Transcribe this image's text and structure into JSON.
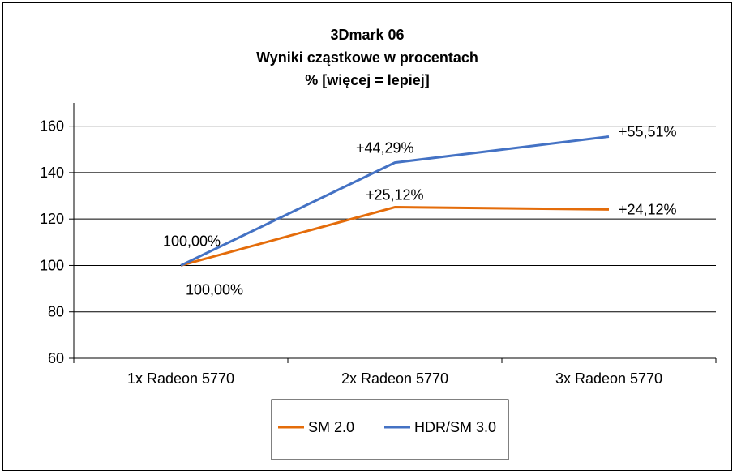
{
  "chart_data": {
    "type": "line",
    "title": [
      "3Dmark 06",
      "Wyniki cząstkowe w procentach",
      "% [więcej = lepiej]"
    ],
    "categories": [
      "1x Radeon 5770",
      "2x Radeon 5770",
      "3x Radeon 5770"
    ],
    "ylim": [
      60,
      170
    ],
    "yticks": [
      60,
      80,
      100,
      120,
      140,
      160
    ],
    "grid": true,
    "legend_position": "bottom",
    "series": [
      {
        "name": "SM 2.0",
        "color": "#E46C0A",
        "values": [
          100,
          125.12,
          124.12
        ],
        "labels": [
          "100,00%",
          "+25,12%",
          "+24,12%"
        ]
      },
      {
        "name": "HDR/SM 3.0",
        "color": "#4472C4",
        "values": [
          100,
          144.29,
          155.51
        ],
        "labels": [
          "100,00%",
          "+44,29%",
          "+55,51%"
        ]
      }
    ]
  }
}
